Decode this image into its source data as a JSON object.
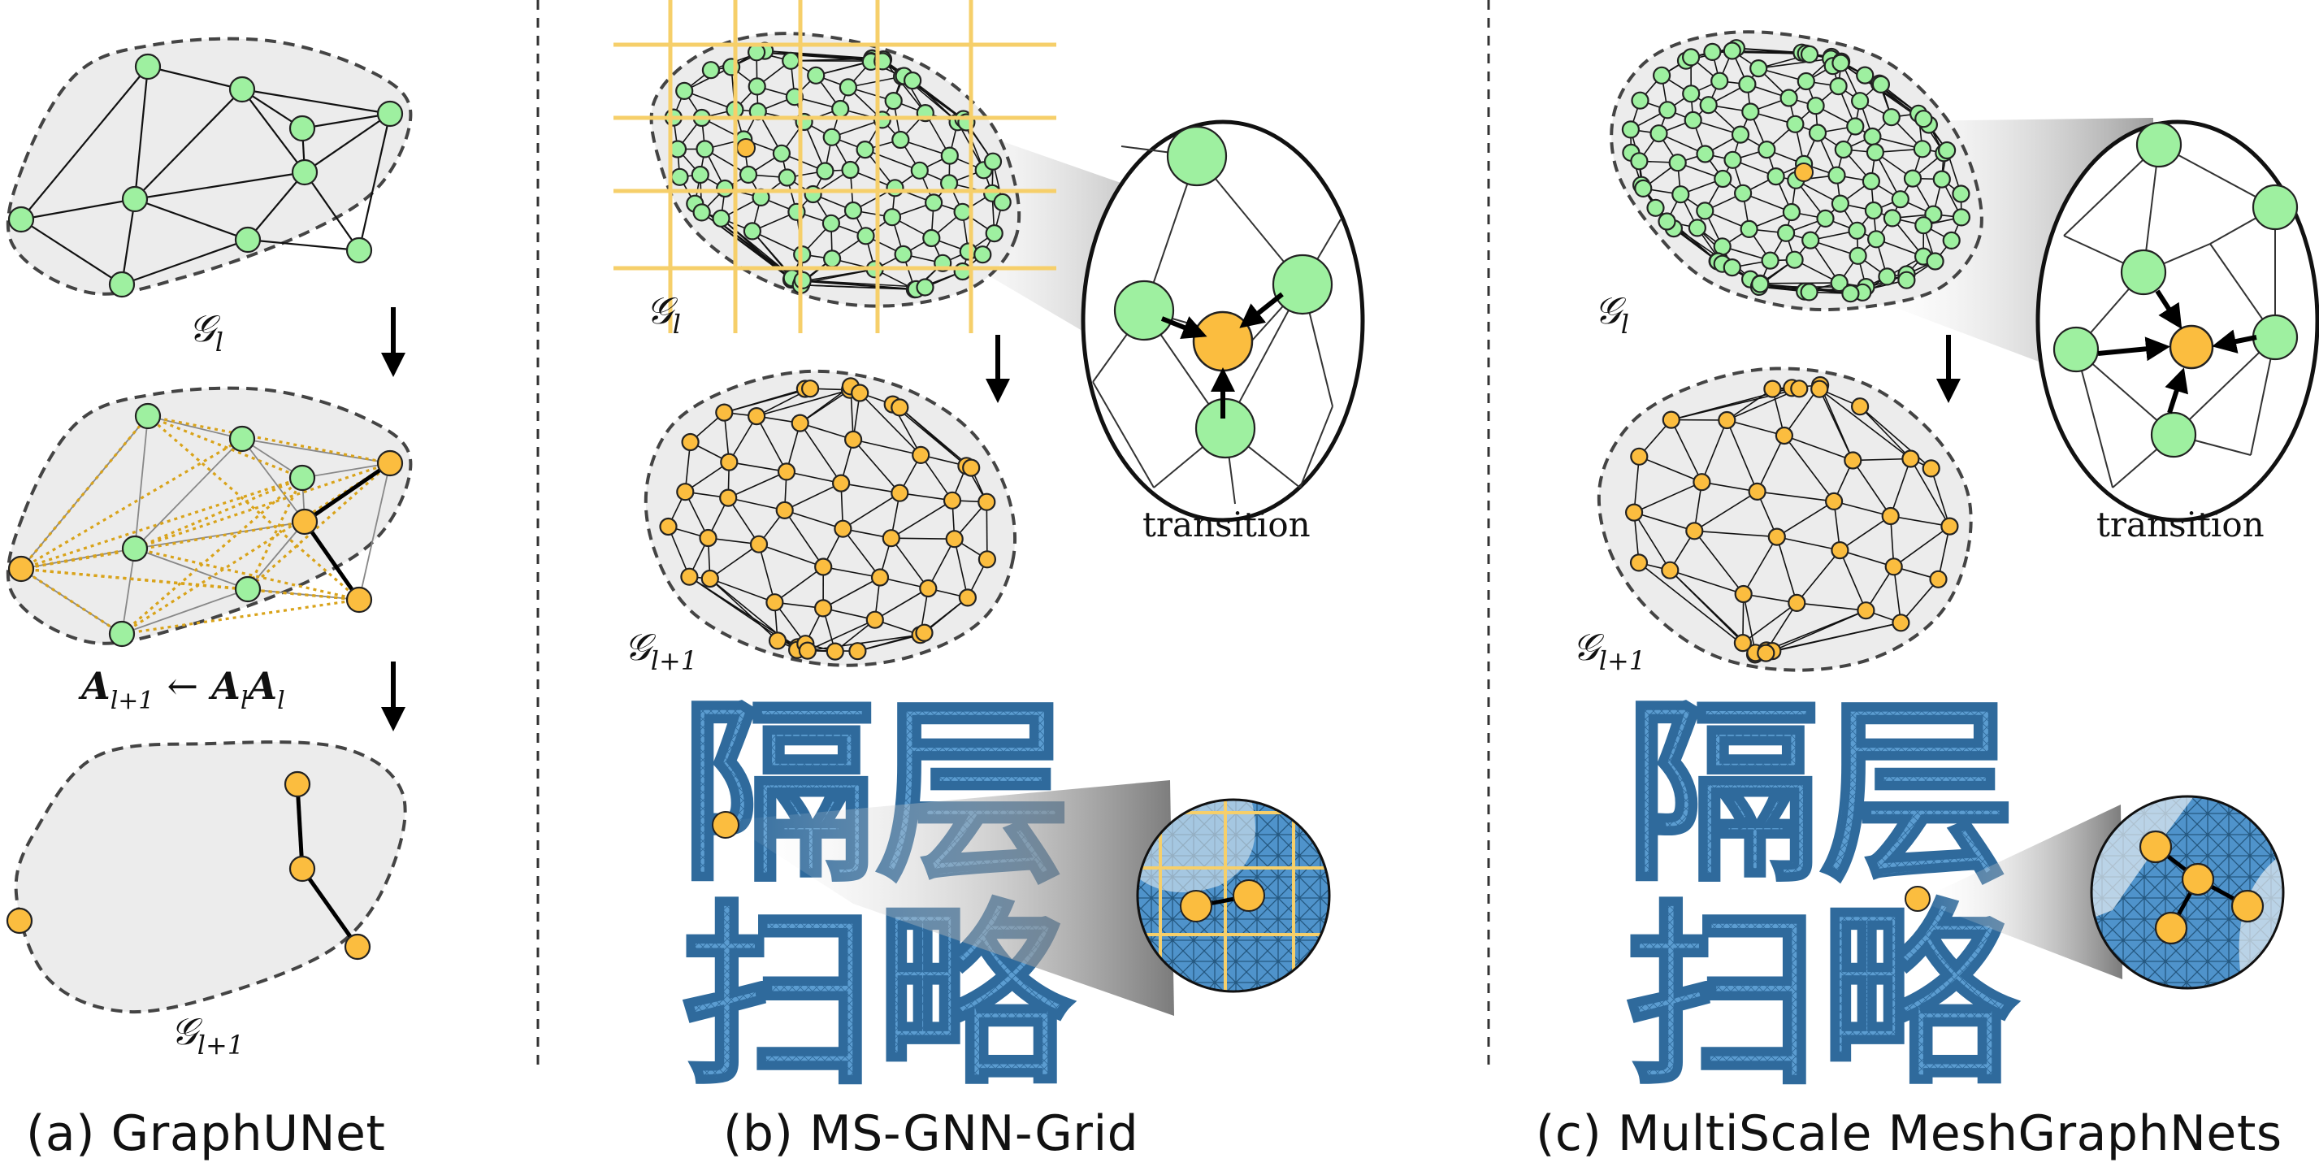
{
  "panels": [
    {
      "caption": "(a) GraphUNet"
    },
    {
      "caption": "(b) MS-GNN-Grid"
    },
    {
      "caption": "(c) MultiScale MeshGraphNets"
    }
  ],
  "labels": {
    "graph_l": "𝒢",
    "graph_l_sub": "l",
    "graph_l1": "𝒢",
    "graph_l1_sub": "l+1",
    "adjacency_update": "A",
    "adjacency_update_rhs": "← A",
    "transition_b": "transition",
    "transition_c": "transition",
    "chinese_glyphs": "隔层扫略"
  },
  "colors": {
    "node_green": "#9ef0a0",
    "node_orange": "#fbbd3f",
    "grid_yellow": "#f6cf6a",
    "region_fill": "#ececec",
    "mesh_blue": "#5b9cd0"
  }
}
